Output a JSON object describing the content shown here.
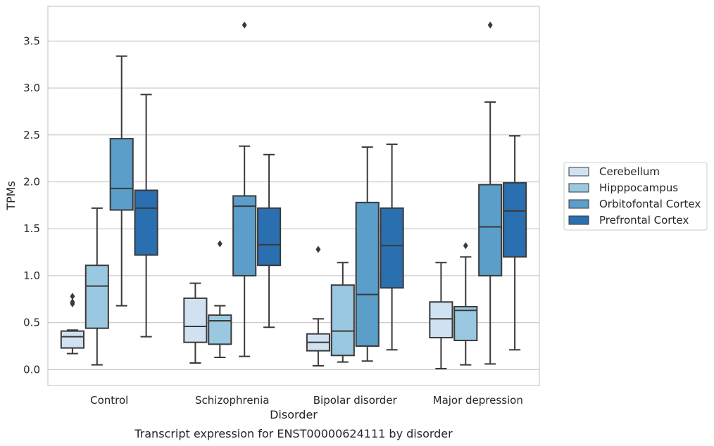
{
  "caption": "Transcript expression for ENST00000624111 by disorder",
  "chart_data": {
    "type": "box",
    "title": "",
    "xlabel": "Disorder",
    "ylabel": "TPMs",
    "ylim": [
      -0.17,
      3.87
    ],
    "yticks": [
      "0.0",
      "0.5",
      "1.0",
      "1.5",
      "2.0",
      "2.5",
      "3.0",
      "3.5"
    ],
    "grid": "horizontal",
    "legend_position": "right",
    "categories": [
      "Control",
      "Schizophrenia",
      "Bipolar disorder",
      "Major depression"
    ],
    "series": [
      {
        "name": "Cerebellum",
        "color": "#d0e1f2",
        "boxes": [
          {
            "whislo": 0.17,
            "q1": 0.23,
            "med": 0.35,
            "q3": 0.41,
            "whishi": 0.42,
            "fliers": [
              0.7,
              0.72,
              0.78
            ]
          },
          {
            "whislo": 0.07,
            "q1": 0.29,
            "med": 0.46,
            "q3": 0.76,
            "whishi": 0.92,
            "fliers": []
          },
          {
            "whislo": 0.04,
            "q1": 0.2,
            "med": 0.29,
            "q3": 0.38,
            "whishi": 0.54,
            "fliers": [
              1.28
            ]
          },
          {
            "whislo": 0.01,
            "q1": 0.34,
            "med": 0.54,
            "q3": 0.72,
            "whishi": 1.14,
            "fliers": []
          }
        ]
      },
      {
        "name": "Hipppocampus",
        "color": "#9ac8e0",
        "boxes": [
          {
            "whislo": 0.05,
            "q1": 0.44,
            "med": 0.89,
            "q3": 1.11,
            "whishi": 1.72,
            "fliers": []
          },
          {
            "whislo": 0.13,
            "q1": 0.27,
            "med": 0.52,
            "q3": 0.58,
            "whishi": 0.68,
            "fliers": [
              1.34
            ]
          },
          {
            "whislo": 0.08,
            "q1": 0.15,
            "med": 0.41,
            "q3": 0.9,
            "whishi": 1.14,
            "fliers": []
          },
          {
            "whislo": 0.05,
            "q1": 0.31,
            "med": 0.63,
            "q3": 0.67,
            "whishi": 1.2,
            "fliers": [
              1.32
            ]
          }
        ]
      },
      {
        "name": "Orbitofontal Cortex",
        "color": "#5a9ec9",
        "boxes": [
          {
            "whislo": 0.68,
            "q1": 1.7,
            "med": 1.93,
            "q3": 2.46,
            "whishi": 3.34,
            "fliers": []
          },
          {
            "whislo": 0.14,
            "q1": 1.0,
            "med": 1.74,
            "q3": 1.85,
            "whishi": 2.38,
            "fliers": [
              3.67
            ]
          },
          {
            "whislo": 0.09,
            "q1": 0.25,
            "med": 0.8,
            "q3": 1.78,
            "whishi": 2.37,
            "fliers": []
          },
          {
            "whislo": 0.06,
            "q1": 1.0,
            "med": 1.52,
            "q3": 1.97,
            "whishi": 2.85,
            "fliers": [
              3.67
            ]
          }
        ]
      },
      {
        "name": "Prefrontal Cortex",
        "color": "#2a6fb0",
        "boxes": [
          {
            "whislo": 0.35,
            "q1": 1.22,
            "med": 1.72,
            "q3": 1.91,
            "whishi": 2.93,
            "fliers": []
          },
          {
            "whislo": 0.45,
            "q1": 1.11,
            "med": 1.33,
            "q3": 1.72,
            "whishi": 2.29,
            "fliers": []
          },
          {
            "whislo": 0.21,
            "q1": 0.87,
            "med": 1.32,
            "q3": 1.72,
            "whishi": 2.4,
            "fliers": []
          },
          {
            "whislo": 0.21,
            "q1": 1.2,
            "med": 1.69,
            "q3": 1.99,
            "whishi": 2.49,
            "fliers": []
          }
        ]
      }
    ]
  }
}
